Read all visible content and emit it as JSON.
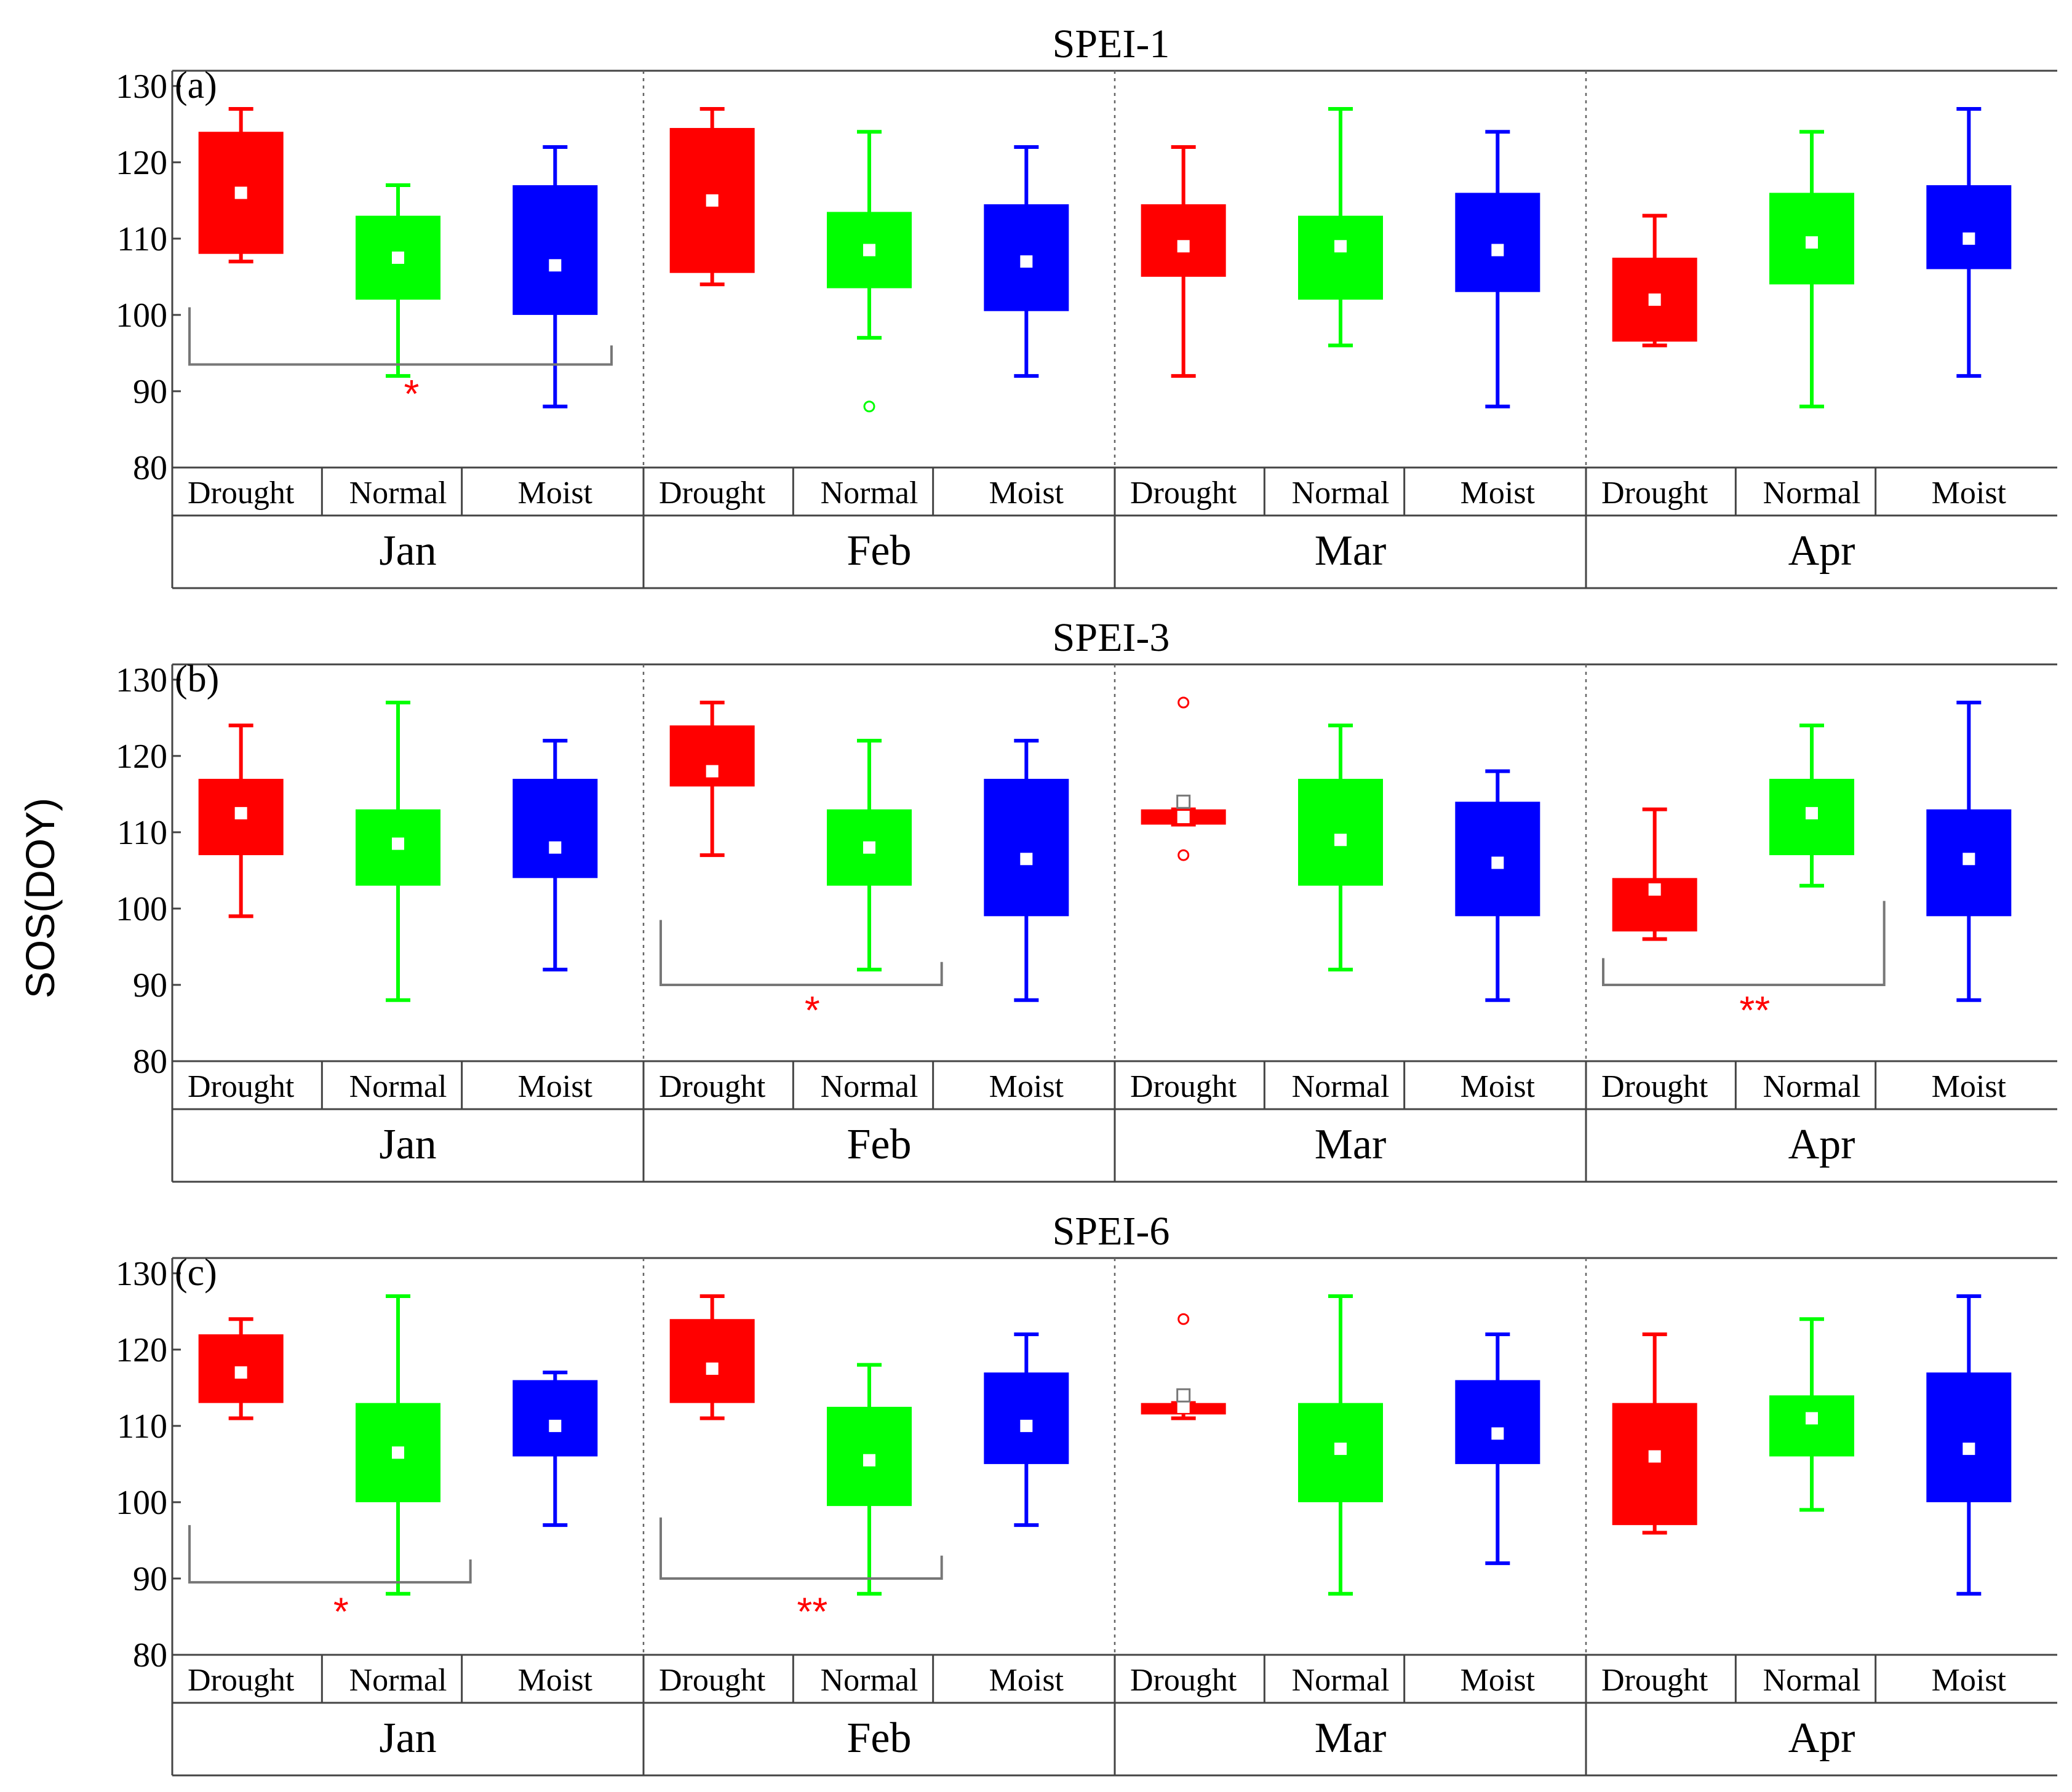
{
  "figure": {
    "ylabel": "SOS(DOY)",
    "y_ticks": [
      80,
      90,
      100,
      110,
      120,
      130
    ],
    "ylim": [
      80,
      132
    ],
    "categories": [
      "Drought",
      "Normal",
      "Moist"
    ],
    "months": [
      "Jan",
      "Feb",
      "Mar",
      "Apr"
    ],
    "colors": {
      "Drought": "#ff0000",
      "Normal": "#00ff00",
      "Moist": "#0000ff"
    }
  },
  "chart_data": [
    {
      "type": "box",
      "title": "SPEI-1",
      "panel_label": "(a)",
      "groups": [
        {
          "month": "Jan",
          "boxes": [
            {
              "category": "Drought",
              "min": 107,
              "q1": 108,
              "median": 116,
              "q3": 124,
              "max": 127,
              "outliers": []
            },
            {
              "category": "Normal",
              "min": 92,
              "q1": 102,
              "median": 107.5,
              "q3": 113,
              "max": 117,
              "outliers": []
            },
            {
              "category": "Moist",
              "min": 88,
              "q1": 100,
              "median": 106.5,
              "q3": 117,
              "max": 122,
              "outliers": []
            }
          ]
        },
        {
          "month": "Feb",
          "boxes": [
            {
              "category": "Drought",
              "min": 104,
              "q1": 105.5,
              "median": 115,
              "q3": 124.5,
              "max": 127,
              "outliers": []
            },
            {
              "category": "Normal",
              "min": 97,
              "q1": 103.5,
              "median": 108.5,
              "q3": 113.5,
              "max": 124,
              "outliers": [
                88
              ]
            },
            {
              "category": "Moist",
              "min": 92,
              "q1": 100.5,
              "median": 107,
              "q3": 114.5,
              "max": 122,
              "outliers": []
            }
          ]
        },
        {
          "month": "Mar",
          "boxes": [
            {
              "category": "Drought",
              "min": 92,
              "q1": 105,
              "median": 109,
              "q3": 114.5,
              "max": 122,
              "outliers": []
            },
            {
              "category": "Normal",
              "min": 96,
              "q1": 102,
              "median": 109,
              "q3": 113,
              "max": 127,
              "outliers": []
            },
            {
              "category": "Moist",
              "min": 88,
              "q1": 103,
              "median": 108.5,
              "q3": 116,
              "max": 124,
              "outliers": []
            }
          ]
        },
        {
          "month": "Apr",
          "boxes": [
            {
              "category": "Drought",
              "min": 96,
              "q1": 96.5,
              "median": 102,
              "q3": 107.5,
              "max": 113,
              "outliers": []
            },
            {
              "category": "Normal",
              "min": 88,
              "q1": 104,
              "median": 109.5,
              "q3": 116,
              "max": 124,
              "outliers": []
            },
            {
              "category": "Moist",
              "min": 92,
              "q1": 106,
              "median": 110,
              "q3": 117,
              "max": 127,
              "outliers": []
            }
          ]
        }
      ],
      "significance": [
        {
          "month": "Jan",
          "from": "Drought",
          "to": "Moist",
          "bar_y": 93.5,
          "arm_left_top": 101,
          "arm_right_top": 96,
          "label": "*",
          "label_y": 90
        }
      ]
    },
    {
      "type": "box",
      "title": "SPEI-3",
      "panel_label": "(b)",
      "groups": [
        {
          "month": "Jan",
          "boxes": [
            {
              "category": "Drought",
              "min": 99,
              "q1": 107,
              "median": 112.5,
              "q3": 117,
              "max": 124,
              "outliers": []
            },
            {
              "category": "Normal",
              "min": 88,
              "q1": 103,
              "median": 108.5,
              "q3": 113,
              "max": 127,
              "outliers": []
            },
            {
              "category": "Moist",
              "min": 92,
              "q1": 104,
              "median": 108,
              "q3": 117,
              "max": 122,
              "outliers": []
            }
          ]
        },
        {
          "month": "Feb",
          "boxes": [
            {
              "category": "Drought",
              "min": 107,
              "q1": 116,
              "median": 118,
              "q3": 124,
              "max": 127,
              "outliers": []
            },
            {
              "category": "Normal",
              "min": 92,
              "q1": 103,
              "median": 108,
              "q3": 113,
              "max": 122,
              "outliers": []
            },
            {
              "category": "Moist",
              "min": 88,
              "q1": 99,
              "median": 106.5,
              "q3": 117,
              "max": 122,
              "outliers": []
            }
          ]
        },
        {
          "month": "Mar",
          "boxes": [
            {
              "category": "Drought",
              "min": 111,
              "q1": 111,
              "median": 112,
              "q3": 113,
              "max": 113,
              "outliers": [
                127,
                107
              ],
              "mean": 114
            },
            {
              "category": "Normal",
              "min": 92,
              "q1": 103,
              "median": 109,
              "q3": 117,
              "max": 124,
              "outliers": []
            },
            {
              "category": "Moist",
              "min": 88,
              "q1": 99,
              "median": 106,
              "q3": 114,
              "max": 118,
              "outliers": []
            }
          ]
        },
        {
          "month": "Apr",
          "boxes": [
            {
              "category": "Drought",
              "min": 96,
              "q1": 97,
              "median": 102.5,
              "q3": 104,
              "max": 113,
              "outliers": []
            },
            {
              "category": "Normal",
              "min": 103,
              "q1": 107,
              "median": 112.5,
              "q3": 117,
              "max": 124,
              "outliers": []
            },
            {
              "category": "Moist",
              "min": 88,
              "q1": 99,
              "median": 106.5,
              "q3": 113,
              "max": 127,
              "outliers": []
            }
          ]
        }
      ],
      "significance": [
        {
          "month": "Feb",
          "from": "Drought",
          "to": "Normal",
          "bar_y": 90,
          "arm_left_top": 98.5,
          "arm_right_top": 93,
          "label": "*",
          "label_y": 87
        },
        {
          "month": "Apr",
          "from": "Drought",
          "to": "Normal",
          "bar_y": 90,
          "arm_left_top": 93.5,
          "arm_right_top": 101,
          "label": "**",
          "label_y": 87
        }
      ]
    },
    {
      "type": "box",
      "title": "SPEI-6",
      "panel_label": "(c)",
      "groups": [
        {
          "month": "Jan",
          "boxes": [
            {
              "category": "Drought",
              "min": 111,
              "q1": 113,
              "median": 117,
              "q3": 122,
              "max": 124,
              "outliers": []
            },
            {
              "category": "Normal",
              "min": 88,
              "q1": 100,
              "median": 106.5,
              "q3": 113,
              "max": 127,
              "outliers": []
            },
            {
              "category": "Moist",
              "min": 97,
              "q1": 106,
              "median": 110,
              "q3": 116,
              "max": 117,
              "outliers": []
            }
          ]
        },
        {
          "month": "Feb",
          "boxes": [
            {
              "category": "Drought",
              "min": 111,
              "q1": 113,
              "median": 117.5,
              "q3": 124,
              "max": 127,
              "outliers": []
            },
            {
              "category": "Normal",
              "min": 88,
              "q1": 99.5,
              "median": 105.5,
              "q3": 112.5,
              "max": 118,
              "outliers": []
            },
            {
              "category": "Moist",
              "min": 97,
              "q1": 105,
              "median": 110,
              "q3": 117,
              "max": 122,
              "outliers": []
            }
          ]
        },
        {
          "month": "Mar",
          "boxes": [
            {
              "category": "Drought",
              "min": 111,
              "q1": 111.5,
              "median": 112.5,
              "q3": 113,
              "max": 113,
              "outliers": [
                124
              ],
              "mean": 114
            },
            {
              "category": "Normal",
              "min": 88,
              "q1": 100,
              "median": 107,
              "q3": 113,
              "max": 127,
              "outliers": []
            },
            {
              "category": "Moist",
              "min": 92,
              "q1": 105,
              "median": 109,
              "q3": 116,
              "max": 122,
              "outliers": []
            }
          ]
        },
        {
          "month": "Apr",
          "boxes": [
            {
              "category": "Drought",
              "min": 96,
              "q1": 97,
              "median": 106,
              "q3": 113,
              "max": 122,
              "outliers": []
            },
            {
              "category": "Normal",
              "min": 99,
              "q1": 106,
              "median": 111,
              "q3": 114,
              "max": 124,
              "outliers": []
            },
            {
              "category": "Moist",
              "min": 88,
              "q1": 100,
              "median": 107,
              "q3": 117,
              "max": 127,
              "outliers": []
            }
          ]
        }
      ],
      "significance": [
        {
          "month": "Jan",
          "from": "Drought",
          "to": "Normal",
          "bar_y": 89.5,
          "arm_left_top": 97,
          "arm_right_top": 92.5,
          "label": "*",
          "label_y": 86
        },
        {
          "month": "Feb",
          "from": "Drought",
          "to": "Normal",
          "bar_y": 90,
          "arm_left_top": 98,
          "arm_right_top": 93,
          "label": "**",
          "label_y": 86
        }
      ]
    }
  ]
}
